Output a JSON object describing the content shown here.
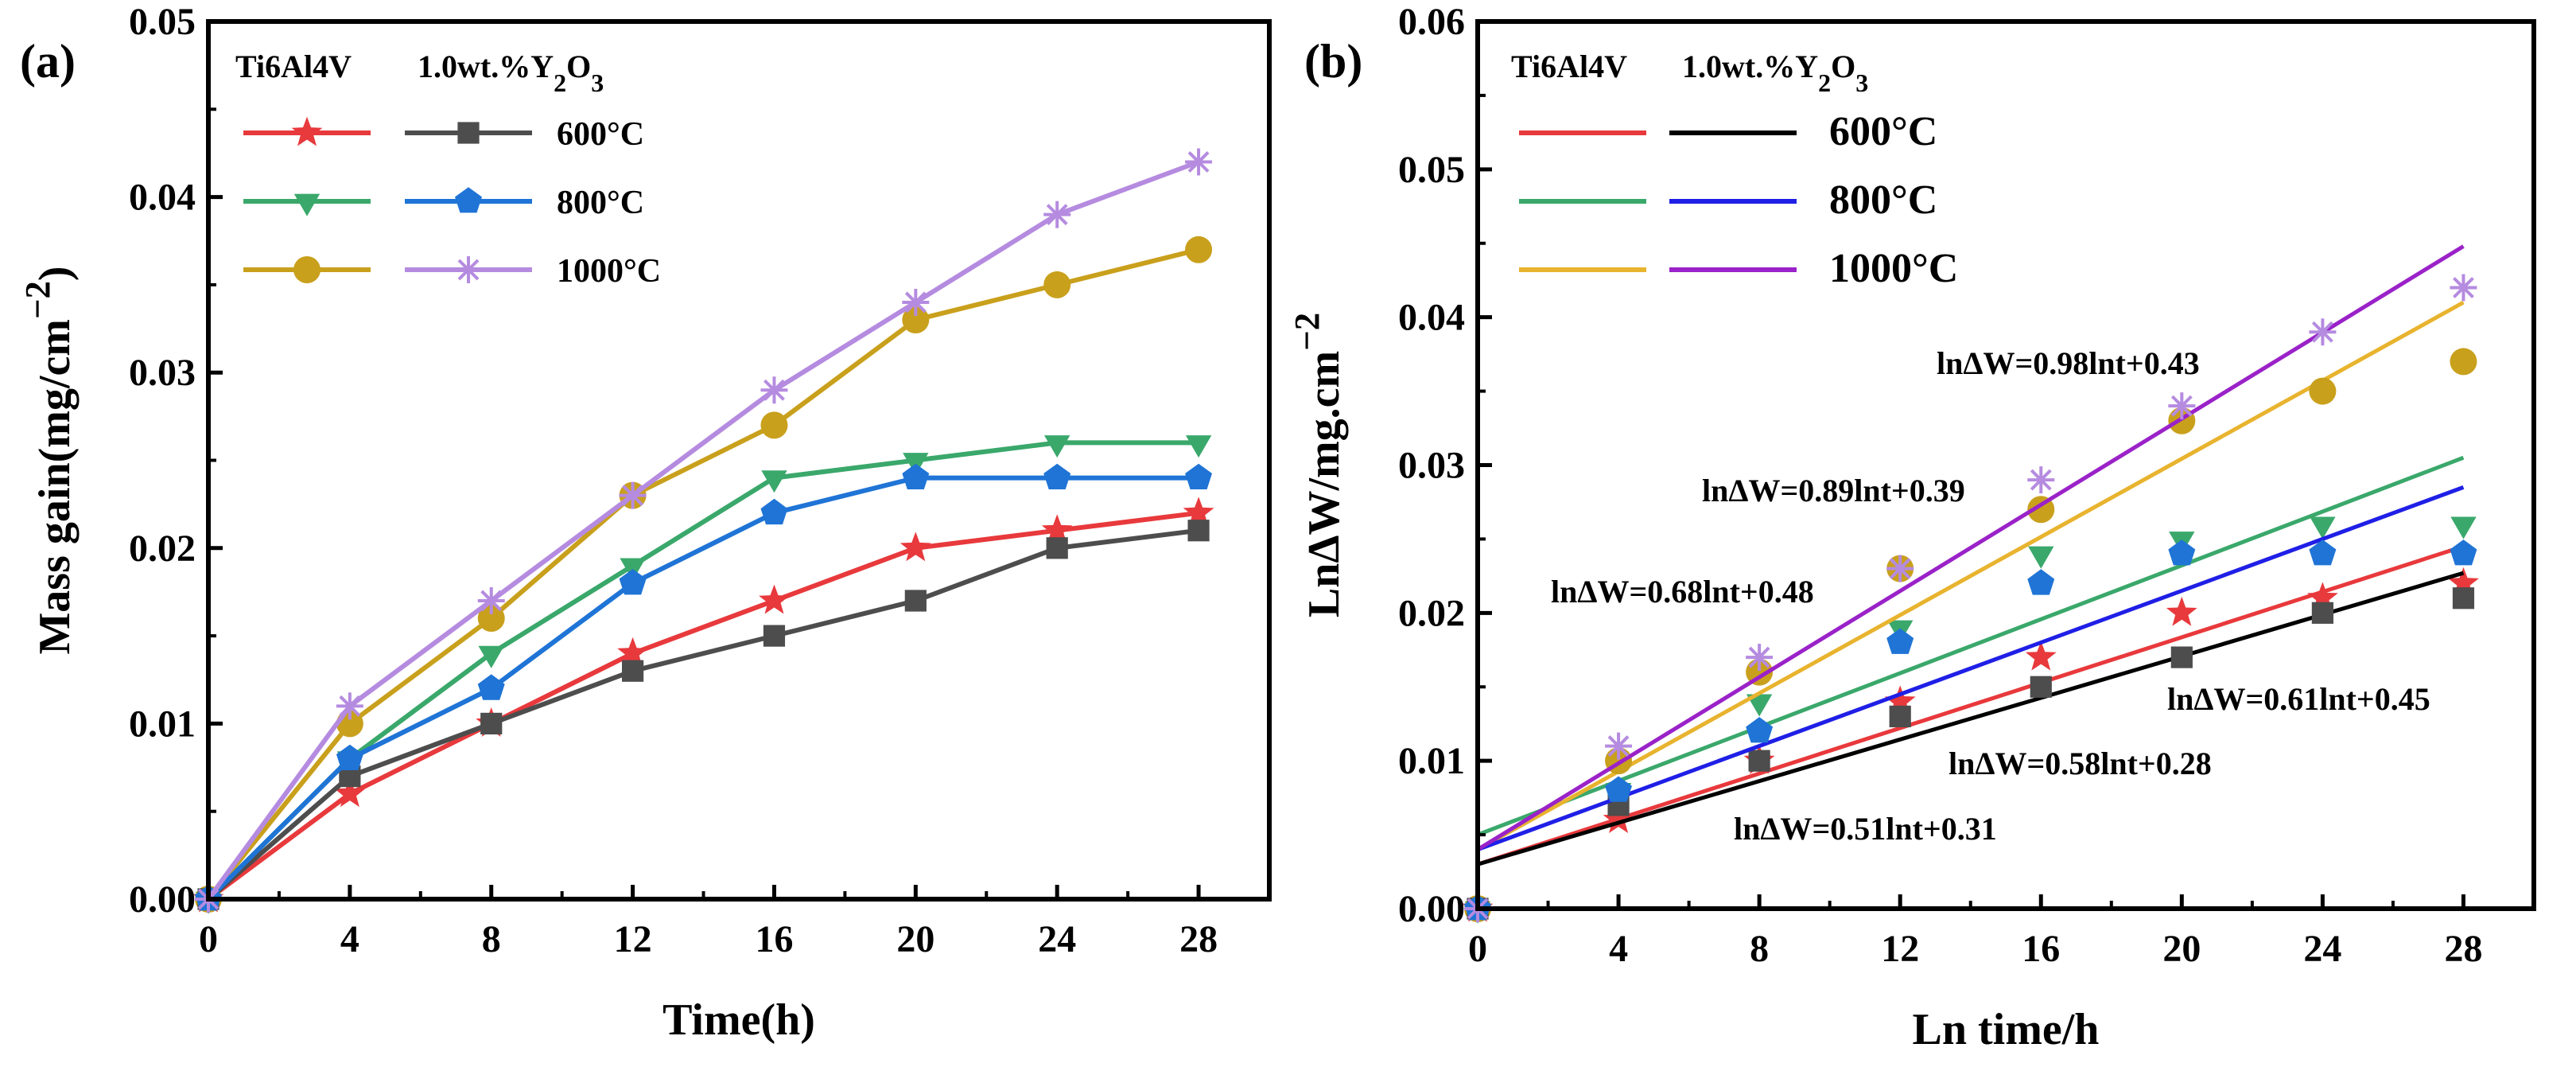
{
  "figure": {
    "panel_labels": [
      "(a)",
      "(b)"
    ]
  },
  "chart_data": [
    {
      "type": "line",
      "panel": "(a)",
      "xlabel": "Time(h)",
      "ylabel": "Mass gain(mg/cm⁻²)",
      "xlim": [
        0,
        30
      ],
      "ylim": [
        0,
        0.05
      ],
      "xticks": [
        0,
        4,
        8,
        12,
        16,
        20,
        24,
        28
      ],
      "xticklabels": [
        "0",
        "4",
        "8",
        "12",
        "16",
        "20",
        "24",
        "28"
      ],
      "yticks": [
        0,
        0.01,
        0.02,
        0.03,
        0.04,
        0.05
      ],
      "yticklabels": [
        "0.00",
        "0.01",
        "0.02",
        "0.03",
        "0.04",
        "0.05"
      ],
      "grid": false,
      "legend": {
        "placement": "top-left",
        "col_headers": [
          "Ti6Al4V",
          "1.0wt.%Y₂O₃"
        ],
        "rows": [
          "600°C",
          "800°C",
          "1000°C"
        ]
      },
      "x": [
        0,
        4,
        8,
        12,
        16,
        20,
        24,
        28
      ],
      "series": [
        {
          "group": "Ti6Al4V",
          "temp": "600°C",
          "color": "#e8393c",
          "marker": "star",
          "values": [
            0,
            0.006,
            0.01,
            0.014,
            0.017,
            0.02,
            0.021,
            0.022
          ]
        },
        {
          "group": "Ti6Al4V",
          "temp": "800°C",
          "color": "#3aa86b",
          "marker": "triangle-down",
          "values": [
            0,
            0.008,
            0.014,
            0.019,
            0.024,
            0.025,
            0.026,
            0.026
          ]
        },
        {
          "group": "Ti6Al4V",
          "temp": "1000°C",
          "color": "#c9a01c",
          "marker": "circle",
          "values": [
            0,
            0.01,
            0.016,
            0.023,
            0.027,
            0.033,
            0.035,
            0.037
          ]
        },
        {
          "group": "1.0wt.%Y₂O₃",
          "temp": "600°C",
          "color": "#4d4d4d",
          "marker": "square",
          "values": [
            0,
            0.007,
            0.01,
            0.013,
            0.015,
            0.017,
            0.02,
            0.021
          ]
        },
        {
          "group": "1.0wt.%Y₂O₃",
          "temp": "800°C",
          "color": "#1f74d6",
          "marker": "pentagon",
          "values": [
            0,
            0.008,
            0.012,
            0.018,
            0.022,
            0.024,
            0.024,
            0.024
          ]
        },
        {
          "group": "1.0wt.%Y₂O₃",
          "temp": "1000°C",
          "color": "#b58be0",
          "marker": "asterisk",
          "values": [
            0,
            0.011,
            0.017,
            0.023,
            0.029,
            0.034,
            0.039,
            0.042
          ]
        }
      ]
    },
    {
      "type": "scatter",
      "panel": "(b)",
      "xlabel": "Ln time/h",
      "ylabel": "LnΔW/mg.cm⁻²",
      "xlim": [
        0,
        30
      ],
      "ylim": [
        0,
        0.06
      ],
      "xticks": [
        0,
        4,
        8,
        12,
        16,
        20,
        24,
        28
      ],
      "xticklabels": [
        "0",
        "4",
        "8",
        "12",
        "16",
        "20",
        "24",
        "28"
      ],
      "yticks": [
        0,
        0.01,
        0.02,
        0.03,
        0.04,
        0.05,
        0.06
      ],
      "yticklabels": [
        "0.00",
        "0.01",
        "0.02",
        "0.03",
        "0.04",
        "0.05",
        "0.06"
      ],
      "grid": false,
      "legend": {
        "placement": "top-left",
        "col_headers": [
          "Ti6Al4V",
          "1.0wt.%Y₂O₃"
        ],
        "rows": [
          "600°C",
          "800°C",
          "1000°C"
        ]
      },
      "x": [
        0,
        4,
        8,
        12,
        16,
        20,
        24,
        28
      ],
      "series": [
        {
          "group": "Ti6Al4V",
          "temp": "600°C",
          "color": "#e8393c",
          "marker": "star",
          "values": [
            0,
            0.006,
            0.01,
            0.014,
            0.017,
            0.02,
            0.021,
            0.022
          ],
          "fit": [
            0.003,
            0.0245
          ],
          "fit_label": "lnΔW=0.58lnt+0.28",
          "fit_label_color": "#e8393c"
        },
        {
          "group": "Ti6Al4V",
          "temp": "800°C",
          "color": "#3aa86b",
          "marker": "triangle-down",
          "values": [
            0,
            0.008,
            0.014,
            0.019,
            0.024,
            0.025,
            0.026,
            0.026
          ],
          "fit": [
            0.005,
            0.0305
          ],
          "fit_label": "lnΔW=0.68lnt+0.48",
          "fit_label_color": "#3aa86b"
        },
        {
          "group": "Ti6Al4V",
          "temp": "1000°C",
          "color": "#e8b32e",
          "marker": "circle",
          "marker_color": "#c9a01c",
          "values": [
            0,
            0.01,
            0.016,
            0.023,
            0.027,
            0.033,
            0.035,
            0.037
          ],
          "fit": [
            0.004,
            0.041
          ],
          "fit_label": "lnΔW=0.89lnt+0.39",
          "fit_label_color": "#e8b32e"
        },
        {
          "group": "1.0wt.%Y₂O₃",
          "temp": "600°C",
          "color": "#000000",
          "marker": "square",
          "marker_color": "#4d4d4d",
          "values": [
            0,
            0.007,
            0.01,
            0.013,
            0.015,
            0.017,
            0.02,
            0.021
          ],
          "fit": [
            0.003,
            0.0227
          ],
          "fit_label": "lnΔW=0.51lnt+0.31",
          "fit_label_color": "#000000"
        },
        {
          "group": "1.0wt.%Y₂O₃",
          "temp": "800°C",
          "color": "#1f1fe6",
          "marker": "pentagon",
          "marker_color": "#1f74d6",
          "values": [
            0,
            0.008,
            0.012,
            0.018,
            0.022,
            0.024,
            0.024,
            0.024
          ],
          "fit": [
            0.004,
            0.0285
          ],
          "fit_label": "lnΔW=0.61lnt+0.45",
          "fit_label_color": "#1f74d6"
        },
        {
          "group": "1.0wt.%Y₂O₃",
          "temp": "1000°C",
          "color": "#9a22c8",
          "marker": "asterisk",
          "marker_color": "#b58be0",
          "values": [
            0,
            0.011,
            0.017,
            0.023,
            0.029,
            0.034,
            0.039,
            0.042
          ],
          "fit": [
            0.004,
            0.0448
          ],
          "fit_label": "lnΔW=0.98lnt+0.43",
          "fit_label_color": "#9a22c8"
        }
      ]
    }
  ]
}
